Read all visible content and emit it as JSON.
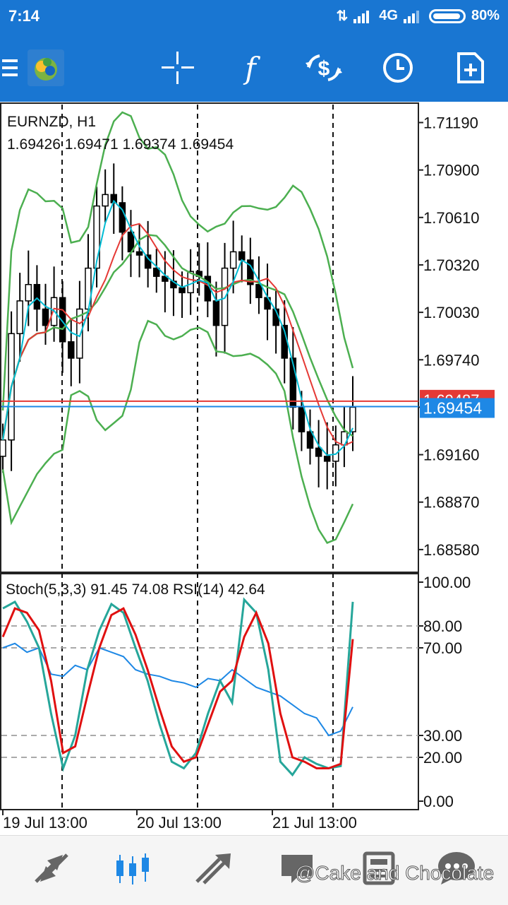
{
  "status": {
    "time": "7:14",
    "network": "4G",
    "battery": "80%"
  },
  "toolbar": {
    "icons": [
      "menu-icon",
      "app-logo",
      "crosshair-icon",
      "indicators-icon",
      "trade-icon",
      "period-icon",
      "add-chart-icon"
    ],
    "indicators_glyph": "f"
  },
  "chart": {
    "symbol": "EURNZD, H1",
    "ohlc": "1.69426 1.69471 1.69374 1.69454",
    "price_axis": [
      "1.71190",
      "1.70900",
      "1.70610",
      "1.70320",
      "1.70030",
      "1.69740",
      "1.69450",
      "1.69160",
      "1.68870",
      "1.68580"
    ],
    "bid_label": "1.69454",
    "ask_label": "1.69487",
    "colors": {
      "bull_bear": "#000000",
      "ma_fast": "#00bcd4",
      "ma_slow": "#e53935",
      "bands": "#4caf50",
      "bid_line": "#1e88e5",
      "ask_line": "#e53935"
    }
  },
  "oscillator": {
    "label": "Stoch(5,3,3) 91.45 74.08 RSI(14) 42.64",
    "levels": [
      "100.00",
      "80.00",
      "70.00",
      "30.00",
      "20.00",
      "0.00"
    ]
  },
  "time_axis": [
    "19 Jul 13:00",
    "20 Jul 13:00",
    "21 Jul 13:00"
  ],
  "bottom_nav": [
    "quotes-icon",
    "chart-icon",
    "trade-icon",
    "history-icon",
    "news-icon",
    "messages-icon"
  ],
  "watermark": "@Cake and Chocolate",
  "chart_data": {
    "type": "line",
    "title": "EURNZD, H1",
    "ylim": [
      1.6845,
      1.713
    ],
    "x": [
      "19 Jul 13:00",
      "20 Jul 13:00",
      "21 Jul 13:00"
    ],
    "close_series": [
      1.6925,
      1.699,
      1.701,
      1.702,
      1.7005,
      1.6995,
      1.7012,
      1.6985,
      1.6975,
      1.7005,
      1.703,
      1.7068,
      1.7075,
      1.707,
      1.7052,
      1.704,
      1.7038,
      1.703,
      1.7025,
      1.7022,
      1.7018,
      1.7015,
      1.7028,
      1.7025,
      1.701,
      1.6995,
      1.703,
      1.704,
      1.7035,
      1.702,
      1.7012,
      1.7005,
      1.6995,
      1.6975,
      1.6945,
      1.693,
      1.692,
      1.6915,
      1.6912,
      1.6922,
      1.693,
      1.6945
    ],
    "stoch_main": [
      88,
      91,
      82,
      70,
      40,
      15,
      30,
      60,
      78,
      90,
      86,
      70,
      55,
      35,
      18,
      15,
      22,
      40,
      55,
      45,
      92,
      86,
      60,
      18,
      12,
      20,
      17,
      15,
      16,
      91
    ],
    "stoch_signal": [
      75,
      88,
      86,
      78,
      55,
      22,
      25,
      48,
      70,
      85,
      88,
      76,
      60,
      42,
      25,
      18,
      20,
      35,
      50,
      55,
      75,
      86,
      72,
      40,
      20,
      18,
      15,
      15,
      17,
      74
    ],
    "rsi": [
      70,
      72,
      68,
      70,
      58,
      57,
      62,
      60,
      70,
      68,
      66,
      60,
      58,
      57,
      55,
      54,
      52,
      56,
      55,
      60,
      56,
      52,
      50,
      48,
      44,
      40,
      38,
      30,
      32,
      43
    ]
  }
}
